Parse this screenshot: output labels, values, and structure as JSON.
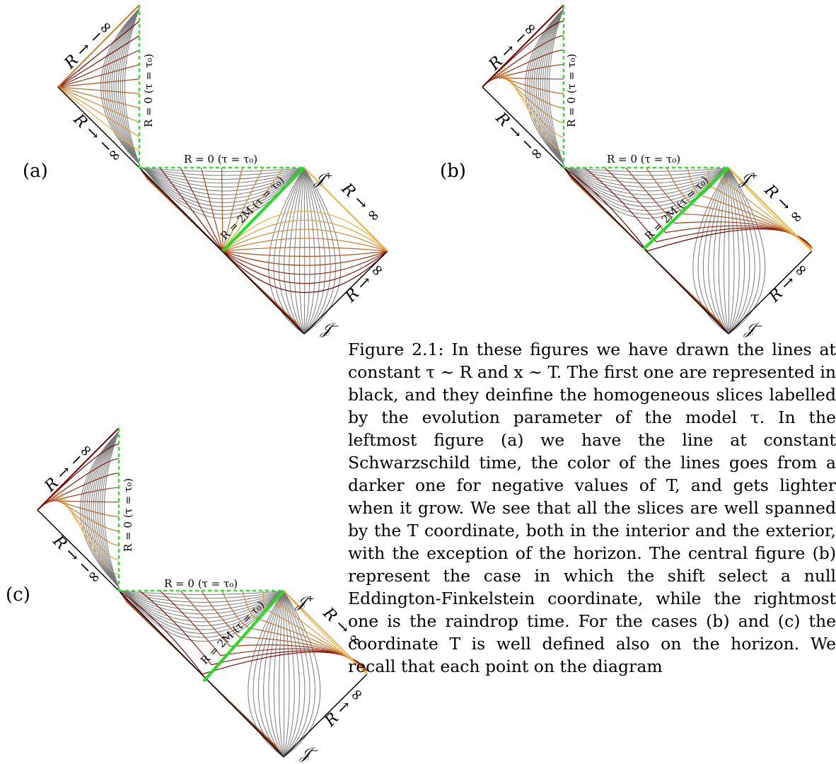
{
  "figure": {
    "panels": [
      {
        "id": "a",
        "label": "(a)",
        "labels": {
          "r_neg_inf_upper": "R → −∞",
          "r_neg_inf_lower": "R → −∞",
          "r_zero_vertical": "R = 0  (τ = τ₀)",
          "r_zero_horizontal": "R = 0  (τ = τ₀)",
          "horizon": "R = 2M  (τ = τ₀)",
          "scri_plus": "𝒥⁺",
          "r_inf_upper": "R → ∞",
          "r_inf_lower": "R → ∞",
          "scri_minus": "𝒥⁻"
        }
      },
      {
        "id": "b",
        "label": "(b)",
        "labels": {
          "r_neg_inf_upper": "R → −∞",
          "r_neg_inf_lower": "R → −∞",
          "r_zero_vertical": "R = 0  (τ = τ₀)",
          "r_zero_horizontal": "R = 0  (τ = τ₀)",
          "horizon": "R = 2M  (τ = τ₀)",
          "scri_plus": "𝒥⁺",
          "r_inf_upper": "R → ∞",
          "r_inf_lower": "R → ∞",
          "scri_minus": "𝒥⁻"
        }
      },
      {
        "id": "c",
        "label": "(c)",
        "labels": {
          "r_neg_inf_upper": "R → −∞",
          "r_neg_inf_lower": "R → −∞",
          "r_zero_vertical": "R = 0  (τ = τ₀)",
          "r_zero_horizontal": "R = 0  (τ = τ₀)",
          "horizon": "R = 2M  (τ = τ₀)",
          "scri_plus": "𝒥⁺",
          "r_inf_upper": "R → ∞",
          "r_inf_lower": "R → ∞",
          "scri_minus": "𝒥⁻"
        }
      }
    ],
    "colors": {
      "constant_tau_lines": "#7a7a7a",
      "t_lines_dark": "#7a0000",
      "t_lines_light": "#f0b040",
      "horizon_line": "#22dd22",
      "singularity_dashed": "#33dd33"
    },
    "caption": "Figure 2.1: In these figures we have drawn the lines at constant τ ∼ R and x ∼ T. The first one are represented in black, and they deinfine the homogeneous slices labelled by the evolution parameter of the model τ. In the leftmost figure (a) we have the line at constant Schwarzschild time, the color of the lines goes from a darker one for negative values of T, and gets lighter when it grow. We see that all the slices are well spanned by the T coordinate, both in the interior and the exterior, with the exception of the horizon. The central figure (b) represent the case in which the shift select a null Eddington-Finkelstein coordinate, while the rightmost one is the raindrop time. For the cases (b) and (c) the coordinate T is well defined also on the horizon. We recall that each point on the diagram"
  }
}
